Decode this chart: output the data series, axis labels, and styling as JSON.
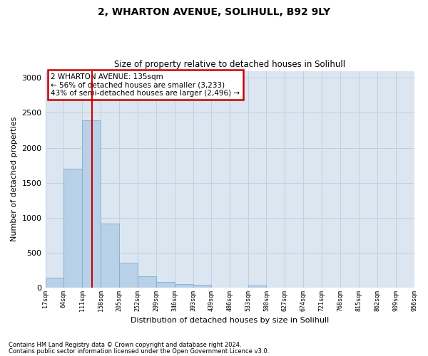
{
  "title1": "2, WHARTON AVENUE, SOLIHULL, B92 9LY",
  "title2": "Size of property relative to detached houses in Solihull",
  "xlabel": "Distribution of detached houses by size in Solihull",
  "ylabel": "Number of detached properties",
  "footnote1": "Contains HM Land Registry data © Crown copyright and database right 2024.",
  "footnote2": "Contains public sector information licensed under the Open Government Licence v3.0.",
  "annotation_line1": "2 WHARTON AVENUE: 135sqm",
  "annotation_line2": "← 56% of detached houses are smaller (3,233)",
  "annotation_line3": "43% of semi-detached houses are larger (2,496) →",
  "bar_color": "#b8d0e8",
  "bar_edge_color": "#7aafd4",
  "vline_color": "#cc0000",
  "annotation_box_color": "#cc0000",
  "background_color": "#ffffff",
  "plot_bg_color": "#dce6f0",
  "grid_color": "#c0cfe0",
  "bin_edges": [
    17,
    64,
    111,
    158,
    205,
    252,
    299,
    346,
    393,
    439,
    486,
    533,
    580,
    627,
    674,
    721,
    768,
    815,
    862,
    909,
    956
  ],
  "bar_heights": [
    140,
    1700,
    2390,
    920,
    355,
    160,
    80,
    50,
    35,
    0,
    0,
    30,
    0,
    0,
    0,
    0,
    0,
    0,
    0,
    0
  ],
  "ylim": [
    0,
    3100
  ],
  "vline_x": 135,
  "figsize": [
    6.0,
    5.0
  ],
  "dpi": 100
}
